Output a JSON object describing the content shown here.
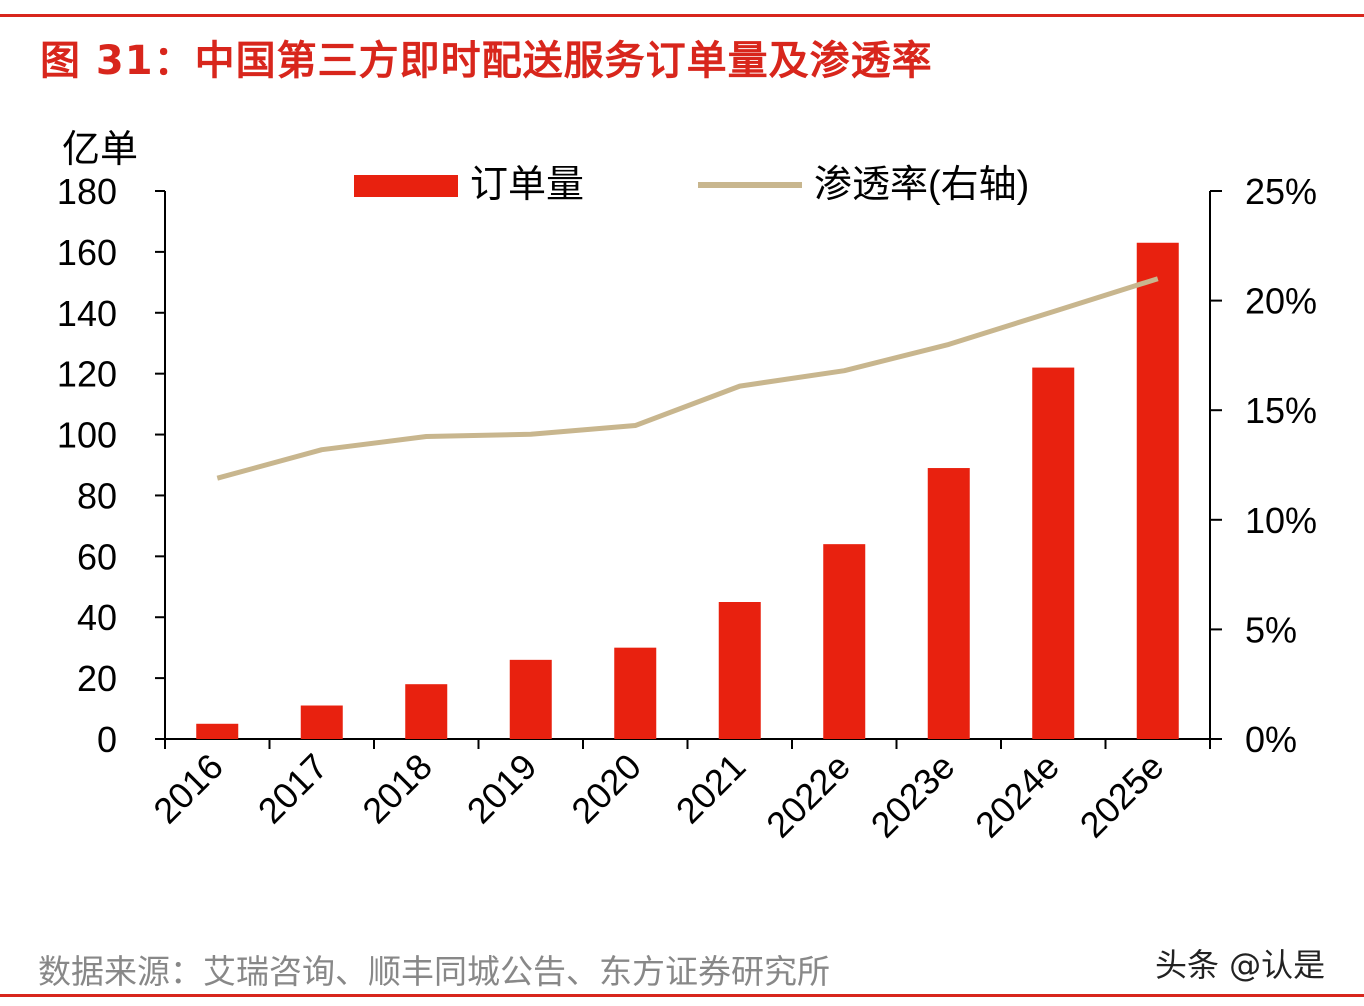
{
  "title": "图 31：中国第三方即时配送服务订单量及渗透率",
  "source": "数据来源：艾瑞咨询、顺丰同城公告、东方证券研究所",
  "watermark": "头条 @认是",
  "chart_data": {
    "type": "bar+line",
    "categories": [
      "2016",
      "2017",
      "2018",
      "2019",
      "2020",
      "2021",
      "2022e",
      "2023e",
      "2024e",
      "2025e"
    ],
    "series": [
      {
        "name": "订单量",
        "type": "bar",
        "axis": "left",
        "color": "#e8210f",
        "values": [
          5,
          11,
          18,
          26,
          30,
          45,
          64,
          89,
          122,
          163
        ]
      },
      {
        "name": "渗透率(右轴)",
        "type": "line",
        "axis": "right",
        "color": "#c8b68e",
        "values": [
          11.9,
          13.2,
          13.8,
          13.9,
          14.3,
          16.1,
          16.8,
          18.0,
          19.5,
          21.0
        ]
      }
    ],
    "ylabel": "亿单",
    "ylim": [
      0,
      180
    ],
    "yticks": [
      "0",
      "20",
      "40",
      "60",
      "80",
      "100",
      "120",
      "140",
      "160",
      "180"
    ],
    "y2lim": [
      0,
      25
    ],
    "y2ticks": [
      "0%",
      "5%",
      "10%",
      "15%",
      "20%",
      "25%"
    ],
    "legend": "top",
    "grid": false
  }
}
